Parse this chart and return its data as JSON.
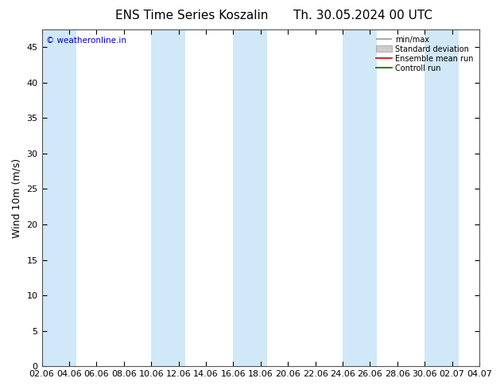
{
  "title": "ENS Time Series Koszalin",
  "title2": "Th. 30.05.2024 00 UTC",
  "ylabel": "Wind 10m (m/s)",
  "watermark": "© weatheronline.in",
  "ylim": [
    0,
    47.5
  ],
  "yticks": [
    0,
    5,
    10,
    15,
    20,
    25,
    30,
    35,
    40,
    45
  ],
  "xtick_labels": [
    "02.06",
    "04.06",
    "06.06",
    "08.06",
    "10.06",
    "12.06",
    "14.06",
    "16.06",
    "18.06",
    "20.06",
    "22.06",
    "24.06",
    "26.06",
    "28.06",
    "30.06",
    "02.07",
    "04.07"
  ],
  "background_color": "#ffffff",
  "plot_bg_color": "#ffffff",
  "band_color": "#d0e8f8",
  "legend_entries": [
    "min/max",
    "Standard deviation",
    "Ensemble mean run",
    "Controll run"
  ],
  "legend_colors": [
    "#aaaaaa",
    "#cccccc",
    "#cc0000",
    "#006600"
  ],
  "title_fontsize": 11,
  "tick_fontsize": 8,
  "ylabel_fontsize": 9,
  "watermark_color": "#0000cc",
  "band_indices": [
    0,
    4,
    8,
    12,
    16,
    20,
    24,
    28
  ],
  "n_labels": 17
}
